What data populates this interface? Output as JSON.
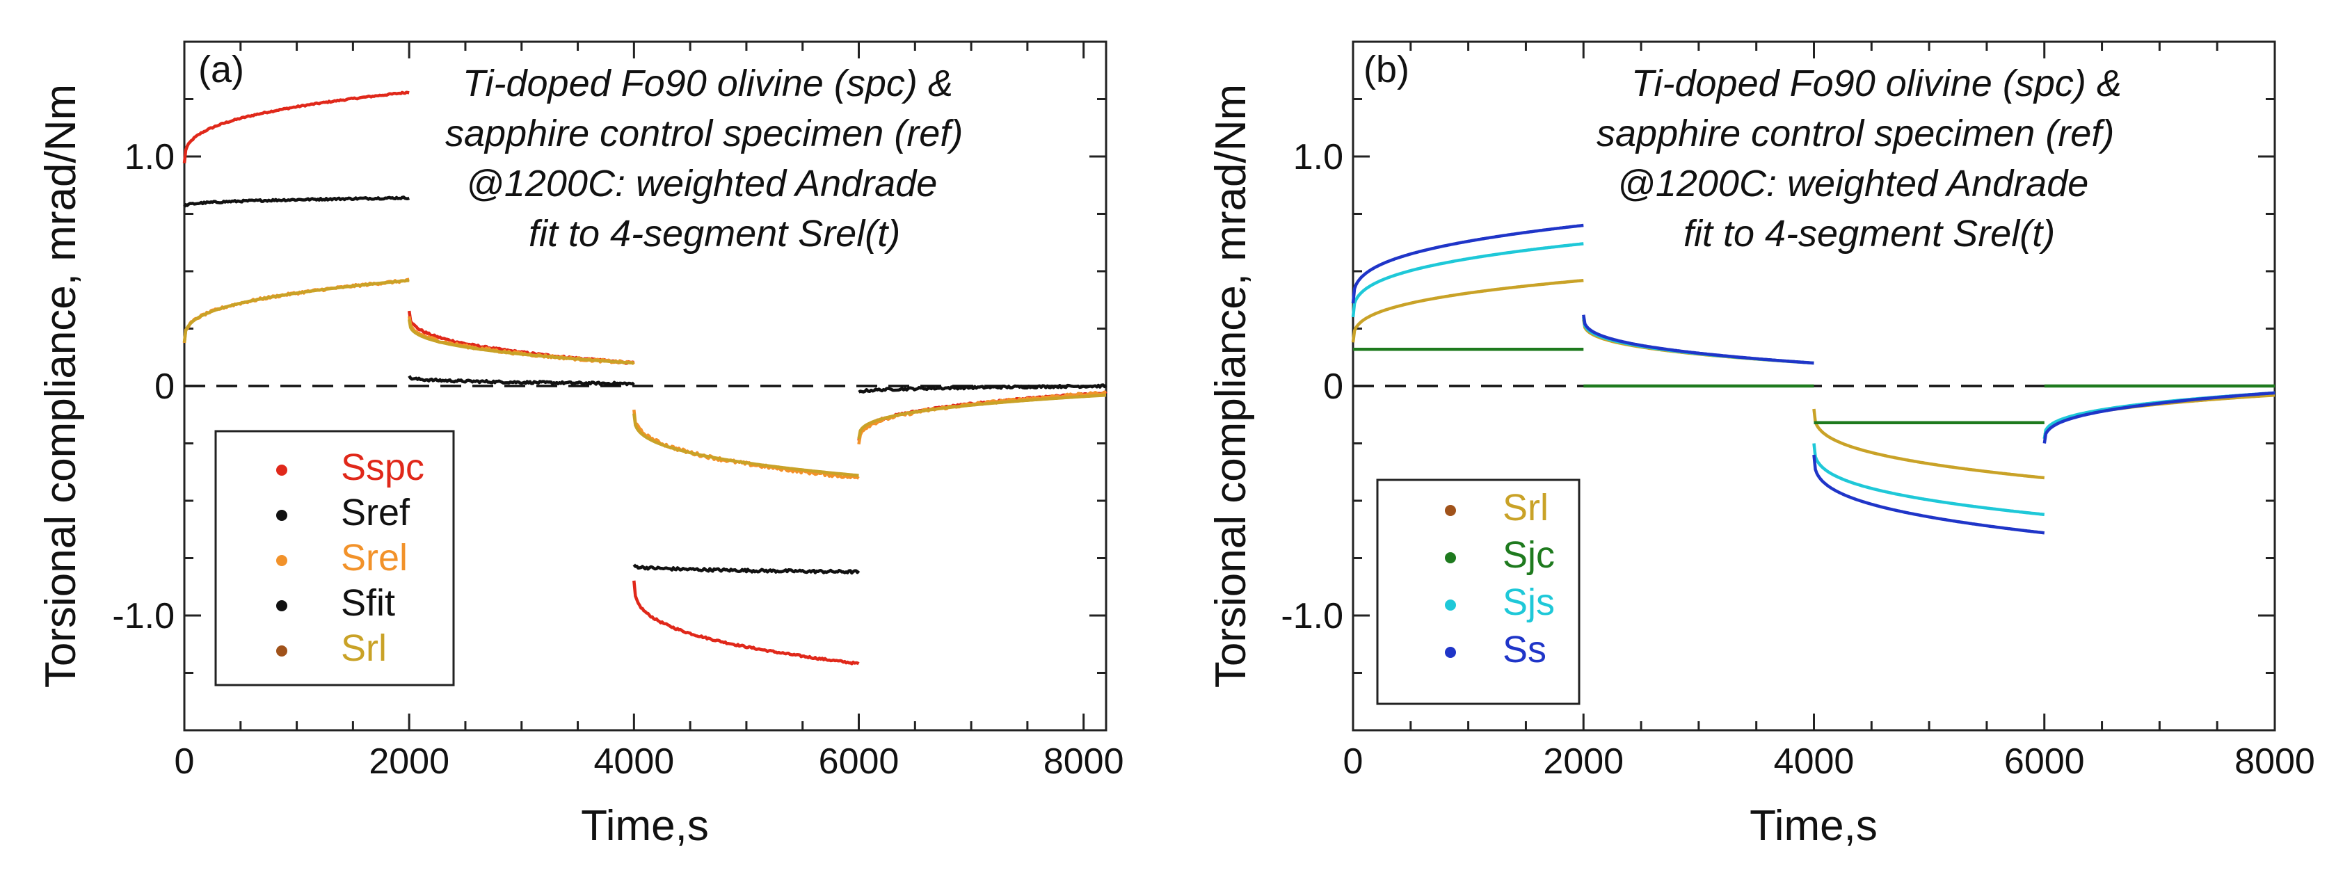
{
  "chart_data": [
    {
      "type": "line",
      "panel_label": "(a)",
      "xlabel": "Time,s",
      "ylabel": "Torsional compliance, mrad/Nm",
      "xlim": [
        0,
        8200
      ],
      "ylim": [
        -1.5,
        1.5
      ],
      "xticks": [
        0,
        2000,
        4000,
        6000,
        8000
      ],
      "xtick_labels": [
        "0",
        "2000",
        "4000",
        "6000",
        "8000"
      ],
      "yticks": [
        -1.0,
        0,
        1.0
      ],
      "ytick_labels": [
        "-1.0",
        "0",
        "1.0"
      ],
      "annotation": [
        "Ti-doped Fo90 olivine (spc) &",
        "sapphire control specimen (ref)",
        "@1200C: weighted Andrade",
        "fit to 4-segment Srel(t)"
      ],
      "zero_line": {
        "y": 0,
        "style": "dashed"
      },
      "legend": [
        {
          "name": "Sspc",
          "color": "#e0281a",
          "text_color": "#e0281a"
        },
        {
          "name": "Sref",
          "color": "#111111",
          "text_color": "#111111"
        },
        {
          "name": "Srel",
          "color": "#f2922a",
          "text_color": "#f2922a"
        },
        {
          "name": "Sfit",
          "color": "#111111",
          "text_color": "#111111"
        },
        {
          "name": "Srl",
          "color": "#a0521a",
          "text_color": "#c9a227"
        }
      ],
      "series": [
        {
          "name": "Sspc",
          "color": "#e0281a",
          "segments": [
            {
              "t0": 0,
              "t1": 2000,
              "start": 0.97,
              "end": 1.28,
              "noise": 0.003
            },
            {
              "t0": 2000,
              "t1": 4000,
              "start": 0.33,
              "end": 0.1,
              "noise": 0.004
            },
            {
              "t0": 4000,
              "t1": 6000,
              "start": -0.85,
              "end": -1.21,
              "noise": 0.004
            },
            {
              "t0": 6000,
              "t1": 8200,
              "start": -0.24,
              "end": -0.03,
              "noise": 0.004
            }
          ]
        },
        {
          "name": "Sref",
          "color": "#111111",
          "segments": [
            {
              "t0": 0,
              "t1": 2000,
              "start": 0.78,
              "end": 0.82,
              "noise": 0.004
            },
            {
              "t0": 2000,
              "t1": 4000,
              "start": 0.04,
              "end": 0.01,
              "noise": 0.005
            },
            {
              "t0": 4000,
              "t1": 6000,
              "start": -0.78,
              "end": -0.81,
              "noise": 0.006
            },
            {
              "t0": 6000,
              "t1": 8200,
              "start": -0.03,
              "end": 0.0,
              "noise": 0.005
            }
          ]
        },
        {
          "name": "Srel",
          "color": "#f2922a",
          "segments": [
            {
              "t0": 0,
              "t1": 2000,
              "start": 0.19,
              "end": 0.46,
              "noise": 0.005
            },
            {
              "t0": 2000,
              "t1": 4000,
              "start": 0.3,
              "end": 0.1,
              "noise": 0.006
            },
            {
              "t0": 4000,
              "t1": 6000,
              "start": -0.1,
              "end": -0.4,
              "noise": 0.007
            },
            {
              "t0": 6000,
              "t1": 8200,
              "start": -0.25,
              "end": -0.03,
              "noise": 0.006
            }
          ]
        },
        {
          "name": "Srl",
          "color": "#c9a227",
          "segments": [
            {
              "t0": 0,
              "t1": 2000,
              "start": 0.19,
              "end": 0.46,
              "noise": 0
            },
            {
              "t0": 2000,
              "t1": 4000,
              "start": 0.29,
              "end": 0.1,
              "noise": 0
            },
            {
              "t0": 4000,
              "t1": 6000,
              "start": -0.12,
              "end": -0.39,
              "noise": 0
            },
            {
              "t0": 6000,
              "t1": 8200,
              "start": -0.23,
              "end": -0.04,
              "noise": 0
            }
          ]
        }
      ]
    },
    {
      "type": "line",
      "panel_label": "(b)",
      "xlabel": "Time,s",
      "ylabel": "Torsional compliance, mrad/Nm",
      "xlim": [
        0,
        8000
      ],
      "ylim": [
        -1.5,
        1.5
      ],
      "xticks": [
        0,
        2000,
        4000,
        6000,
        8000
      ],
      "xtick_labels": [
        "0",
        "2000",
        "4000",
        "6000",
        "8000"
      ],
      "yticks": [
        -1.0,
        0,
        1.0
      ],
      "ytick_labels": [
        "-1.0",
        "0",
        "1.0"
      ],
      "annotation": [
        "Ti-doped Fo90 olivine (spc) &",
        "sapphire control specimen (ref)",
        "@1200C: weighted Andrade",
        "fit to 4-segment Srel(t)"
      ],
      "zero_line": {
        "y": 0,
        "style": "dashed"
      },
      "legend": [
        {
          "name": "Srl",
          "color": "#a0521a",
          "text_color": "#c9a227"
        },
        {
          "name": "Sjc",
          "color": "#1e7a1e",
          "text_color": "#1e7a1e"
        },
        {
          "name": "Sjs",
          "color": "#1ec8d8",
          "text_color": "#1ec8d8"
        },
        {
          "name": "Ss",
          "color": "#1f35c8",
          "text_color": "#1f35c8"
        }
      ],
      "series": [
        {
          "name": "Srl",
          "color": "#c9a227",
          "segments": [
            {
              "t0": 0,
              "t1": 2000,
              "start": 0.19,
              "end": 0.46,
              "noise": 0
            },
            {
              "t0": 2000,
              "t1": 4000,
              "start": 0.29,
              "end": 0.1,
              "noise": 0
            },
            {
              "t0": 4000,
              "t1": 6000,
              "start": -0.1,
              "end": -0.4,
              "noise": 0
            },
            {
              "t0": 6000,
              "t1": 8000,
              "start": -0.23,
              "end": -0.04,
              "noise": 0
            }
          ]
        },
        {
          "name": "Sjc",
          "color": "#1e7a1e",
          "segments": [
            {
              "t0": 0,
              "t1": 2000,
              "start": 0.16,
              "end": 0.16,
              "noise": 0
            },
            {
              "t0": 2000,
              "t1": 4000,
              "start": 0.0,
              "end": 0.0,
              "noise": 0
            },
            {
              "t0": 4000,
              "t1": 6000,
              "start": -0.16,
              "end": -0.16,
              "noise": 0
            },
            {
              "t0": 6000,
              "t1": 8000,
              "start": 0.0,
              "end": 0.0,
              "noise": 0
            }
          ]
        },
        {
          "name": "Sjs",
          "color": "#1ec8d8",
          "segments": [
            {
              "t0": 0,
              "t1": 2000,
              "start": 0.3,
              "end": 0.62,
              "noise": 0
            },
            {
              "t0": 2000,
              "t1": 4000,
              "start": 0.3,
              "end": 0.1,
              "noise": 0
            },
            {
              "t0": 4000,
              "t1": 6000,
              "start": -0.25,
              "end": -0.56,
              "noise": 0
            },
            {
              "t0": 6000,
              "t1": 8000,
              "start": -0.23,
              "end": -0.03,
              "noise": 0
            }
          ]
        },
        {
          "name": "Ss",
          "color": "#1f35c8",
          "segments": [
            {
              "t0": 0,
              "t1": 2000,
              "start": 0.36,
              "end": 0.7,
              "noise": 0
            },
            {
              "t0": 2000,
              "t1": 4000,
              "start": 0.31,
              "end": 0.1,
              "noise": 0
            },
            {
              "t0": 4000,
              "t1": 6000,
              "start": -0.3,
              "end": -0.64,
              "noise": 0
            },
            {
              "t0": 6000,
              "t1": 8000,
              "start": -0.25,
              "end": -0.03,
              "noise": 0
            }
          ]
        }
      ]
    }
  ]
}
